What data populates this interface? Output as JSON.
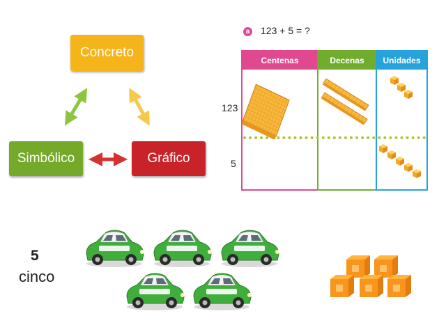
{
  "diagram": {
    "concreto": "Concreto",
    "simbolico": "Simbólico",
    "grafico": "Gráfico"
  },
  "problem": {
    "badge": "a",
    "equation": "123 + 5 = ?",
    "columns": [
      "Centenas",
      "Decenas",
      "Unidades"
    ],
    "row_labels": [
      "123",
      "5"
    ],
    "row1": {
      "centenas": 1,
      "decenas": 2,
      "unidades": 3
    },
    "row2": {
      "centenas": 0,
      "decenas": 0,
      "unidades": 5
    }
  },
  "example": {
    "number": "5",
    "word": "cinco",
    "cars_count": 5,
    "cubes_count": 5
  },
  "colors": {
    "concreto": "#f6b41b",
    "simbolico": "#74a92a",
    "grafico": "#c9232a",
    "centenas": "#e0498f",
    "decenas": "#70ad2f",
    "unidades": "#27a3dc"
  }
}
